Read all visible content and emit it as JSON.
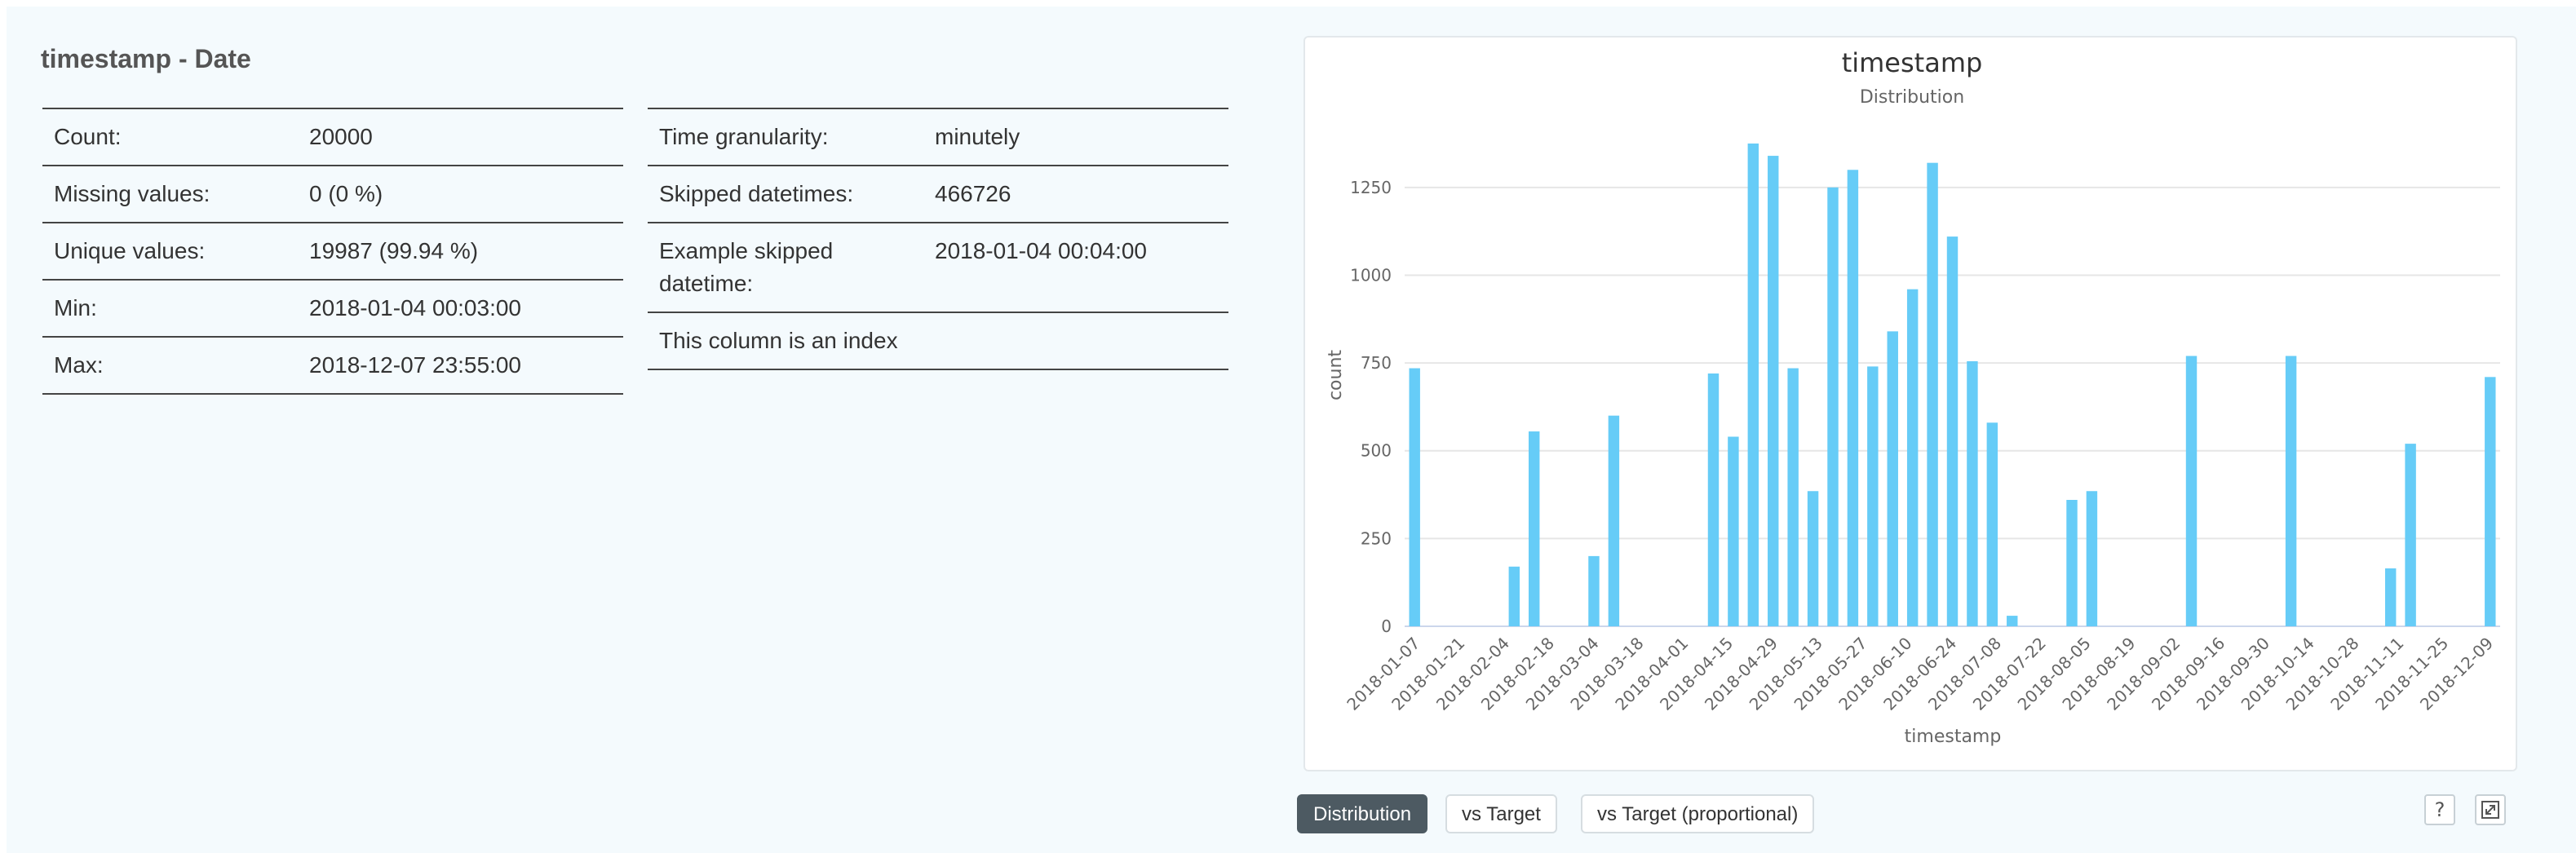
{
  "header": {
    "title": "timestamp - Date"
  },
  "stats_left": [
    {
      "label": "Count:",
      "value": "20000"
    },
    {
      "label": "Missing values:",
      "value": "0 (0 %)"
    },
    {
      "label": "Unique values:",
      "value": "19987 (99.94 %)"
    },
    {
      "label": "Min:",
      "value": "2018-01-04 00:03:00"
    },
    {
      "label": "Max:",
      "value": "2018-12-07 23:55:00"
    }
  ],
  "stats_right": [
    {
      "label": "Time granularity:",
      "value": "minutely"
    },
    {
      "label": "Skipped datetimes:",
      "value": "466726"
    },
    {
      "label": "Example skipped datetime:",
      "value": "2018-01-04 00:04:00"
    }
  ],
  "index_note": "This column is an index",
  "buttons": {
    "distribution": "Distribution",
    "vs_target": "vs Target",
    "vs_target_prop": "vs Target (proportional)",
    "help": "?",
    "expand_icon": "expand-icon"
  },
  "colors": {
    "bar": "#66ccf7",
    "active_button": "#4d5a62"
  },
  "chart_data": {
    "type": "bar",
    "title": "timestamp",
    "subtitle": "Distribution",
    "xlabel": "timestamp",
    "ylabel": "count",
    "ylim": [
      0,
      1375
    ],
    "yticks": [
      0,
      250,
      500,
      750,
      1000,
      1250
    ],
    "grid": true,
    "xtick_labels": [
      "2018-01-07",
      "2018-01-21",
      "2018-02-04",
      "2018-02-18",
      "2018-03-04",
      "2018-03-18",
      "2018-04-01",
      "2018-04-15",
      "2018-04-29",
      "2018-05-13",
      "2018-05-27",
      "2018-06-10",
      "2018-06-24",
      "2018-07-08",
      "2018-07-22",
      "2018-08-05",
      "2018-08-19",
      "2018-09-02",
      "2018-09-16",
      "2018-09-30",
      "2018-10-14",
      "2018-10-28",
      "2018-11-11",
      "2018-11-25",
      "2018-12-09"
    ],
    "values": [
      735,
      0,
      0,
      0,
      0,
      170,
      555,
      0,
      0,
      200,
      600,
      0,
      0,
      0,
      0,
      720,
      540,
      1375,
      1340,
      735,
      385,
      1250,
      1300,
      740,
      840,
      960,
      1320,
      1110,
      755,
      580,
      30,
      0,
      0,
      360,
      385,
      0,
      0,
      0,
      0,
      770,
      0,
      0,
      0,
      0,
      770,
      0,
      0,
      0,
      0,
      165,
      520,
      0,
      0,
      0,
      710
    ]
  }
}
